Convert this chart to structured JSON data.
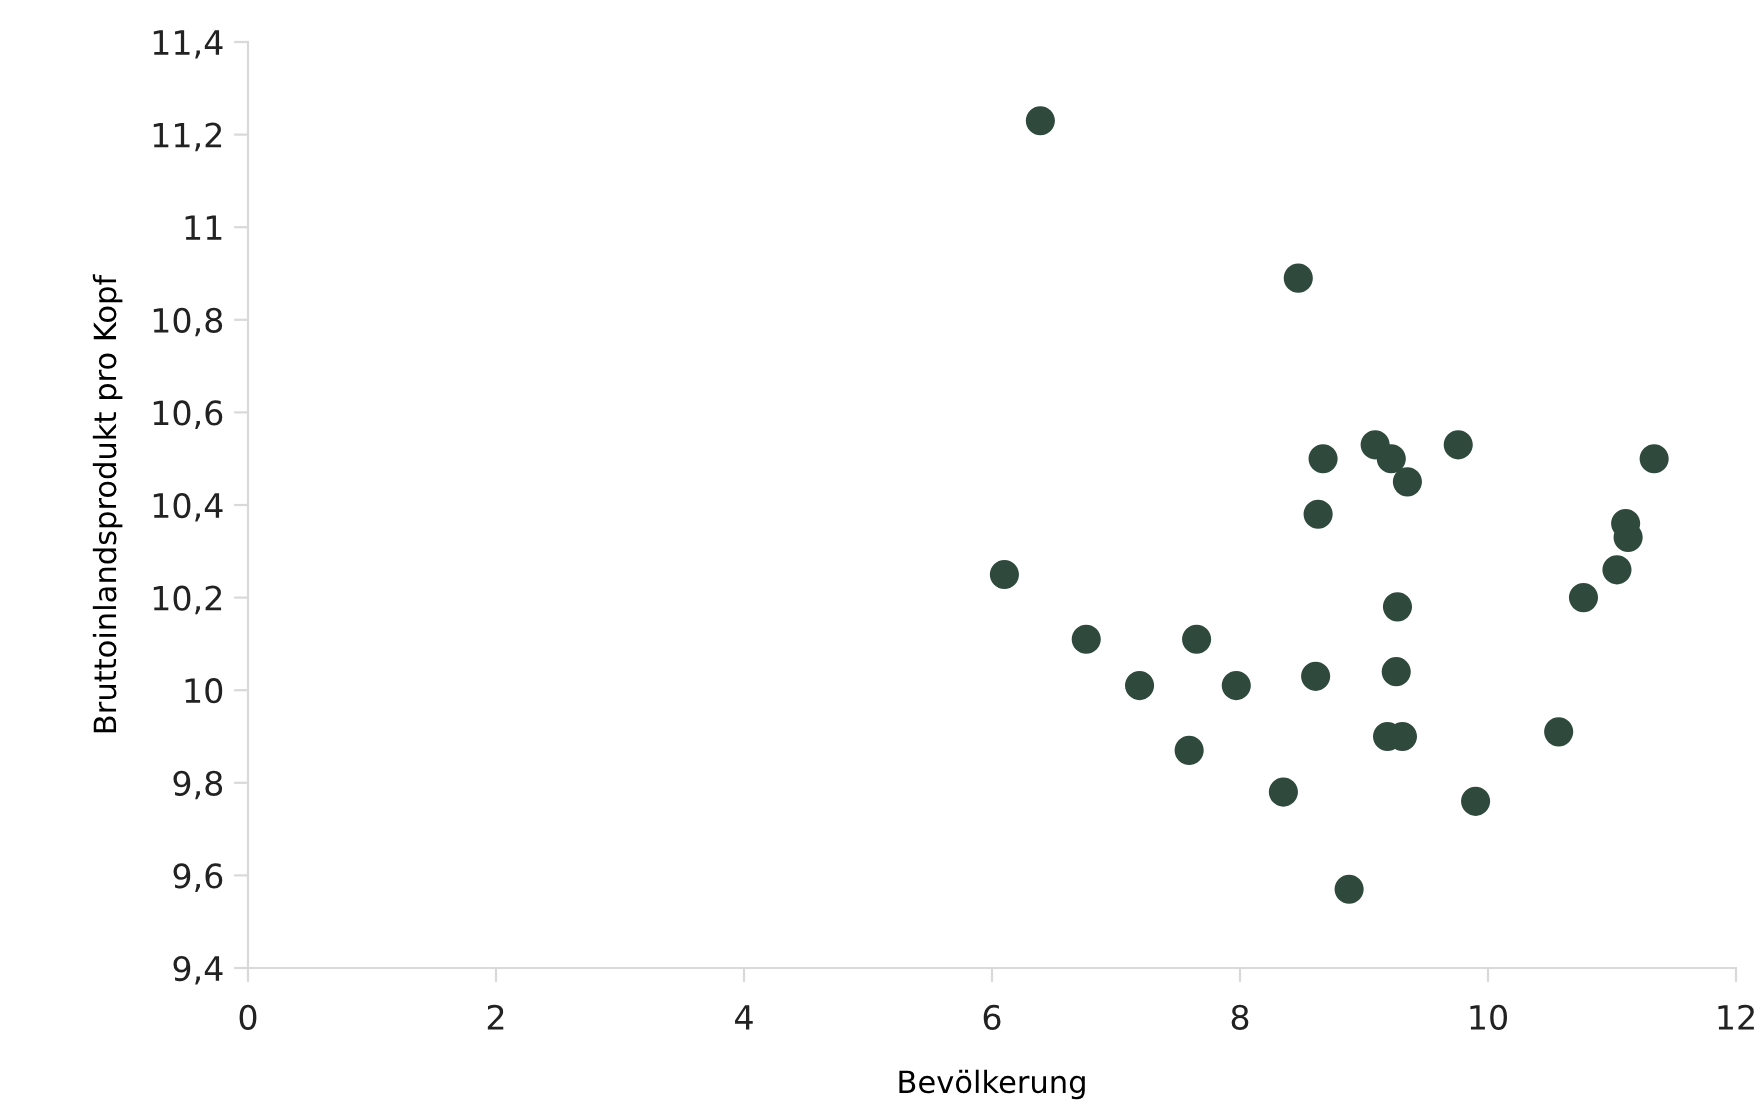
{
  "chart_data": {
    "type": "scatter",
    "xlabel": "Bevölkerung",
    "ylabel": "Bruttoinlandsprodukt pro Kopf",
    "x": [
      6.39,
      8.47,
      8.67,
      9.09,
      9.22,
      9.35,
      9.76,
      11.34,
      8.63,
      11.11,
      11.13,
      11.04,
      10.77,
      6.1,
      9.27,
      6.76,
      7.65,
      7.19,
      7.97,
      8.61,
      9.26,
      9.19,
      9.31,
      10.57,
      7.59,
      8.35,
      9.9,
      8.88
    ],
    "values": [
      11.23,
      10.89,
      10.5,
      10.53,
      10.5,
      10.45,
      10.53,
      10.5,
      10.38,
      10.36,
      10.33,
      10.26,
      10.2,
      10.25,
      10.18,
      10.11,
      10.11,
      10.01,
      10.01,
      10.03,
      10.04,
      9.9,
      9.9,
      9.91,
      9.87,
      9.78,
      9.76,
      9.57
    ],
    "color": "#2f4a3c",
    "marker": "circle",
    "xlim": [
      0,
      12
    ],
    "xticks": [
      0,
      2,
      4,
      6,
      8,
      10,
      12
    ],
    "ylim": [
      9.4,
      11.4
    ],
    "yticks": [
      {
        "value": 9.4,
        "label": "9,4"
      },
      {
        "value": 9.6,
        "label": "9,6"
      },
      {
        "value": 9.8,
        "label": "9,8"
      },
      10,
      {
        "value": 10.2,
        "label": "10,2"
      },
      {
        "value": 10.4,
        "label": "10,4"
      },
      {
        "value": 10.6,
        "label": "10,6"
      },
      {
        "value": 10.8,
        "label": "10,8"
      },
      11,
      {
        "value": 11.2,
        "label": "11,2"
      },
      {
        "value": 11.4,
        "label": "11,4"
      }
    ],
    "grid": false
  }
}
